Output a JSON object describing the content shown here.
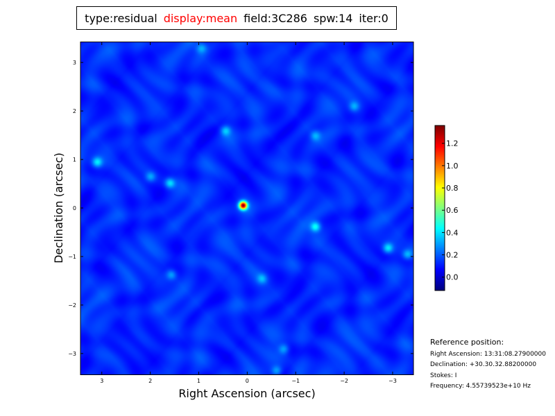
{
  "title_items": [
    {
      "text": "type:residual",
      "color": "#000000"
    },
    {
      "text": "display:mean",
      "color": "#ff0000"
    },
    {
      "text": "field:3C286",
      "color": "#000000"
    },
    {
      "text": "spw:14",
      "color": "#000000"
    },
    {
      "text": "iter:0",
      "color": "#000000"
    }
  ],
  "chart_data": {
    "type": "heatmap",
    "colormap": "jet",
    "xlabel": "Right Ascension (arcsec)",
    "ylabel": "Declination (arcsec)",
    "xlim": [
      3.44,
      -3.43
    ],
    "ylim": [
      -3.43,
      3.43
    ],
    "x_ticks": [
      3,
      2,
      1,
      0,
      -1,
      -2,
      -3
    ],
    "x_tick_labels": [
      "3",
      "2",
      "1",
      "0",
      "−1",
      "−2",
      "−3"
    ],
    "y_ticks": [
      3,
      2,
      1,
      0,
      -1,
      -2,
      -3
    ],
    "y_tick_labels": [
      "3",
      "2",
      "1",
      "0",
      "−1",
      "−2",
      "−3"
    ],
    "colorbar": {
      "range": [
        -0.12,
        1.36
      ],
      "ticks": [
        0.0,
        0.2,
        0.4,
        0.6,
        0.8,
        1.0,
        1.2
      ],
      "tick_labels": [
        "0.0",
        "0.2",
        "0.4",
        "0.6",
        "0.8",
        "1.0",
        "1.2"
      ]
    },
    "background_level": 0.12,
    "bright_features": [
      {
        "x": 0.09,
        "y": 0.06,
        "value": 1.3
      },
      {
        "x": -1.4,
        "y": -0.38,
        "value": 0.45
      },
      {
        "x": -2.9,
        "y": -0.82,
        "value": 0.4
      },
      {
        "x": -3.3,
        "y": -0.95,
        "value": 0.35
      },
      {
        "x": 3.1,
        "y": 0.95,
        "value": 0.4
      },
      {
        "x": 1.6,
        "y": 0.52,
        "value": 0.4
      },
      {
        "x": 2.0,
        "y": 0.65,
        "value": 0.3
      },
      {
        "x": 0.45,
        "y": 1.6,
        "value": 0.35
      },
      {
        "x": -1.4,
        "y": 1.5,
        "value": 0.3
      },
      {
        "x": -0.75,
        "y": -2.9,
        "value": 0.3
      },
      {
        "x": 1.57,
        "y": -1.37,
        "value": 0.3
      },
      {
        "x": -0.3,
        "y": -1.45,
        "value": 0.3
      },
      {
        "x": 0.95,
        "y": 3.3,
        "value": 0.3
      },
      {
        "x": -2.2,
        "y": 2.1,
        "value": 0.3
      },
      {
        "x": -0.6,
        "y": -3.35,
        "value": 0.3
      }
    ]
  },
  "reference": {
    "heading": "Reference position:",
    "ra": "Right Ascension: 13:31:08.27900000",
    "dec": "Declination: +30.30.32.88200000",
    "stokes": "Stokes: I",
    "freq": "Frequency: 4.55739523e+10 Hz"
  }
}
